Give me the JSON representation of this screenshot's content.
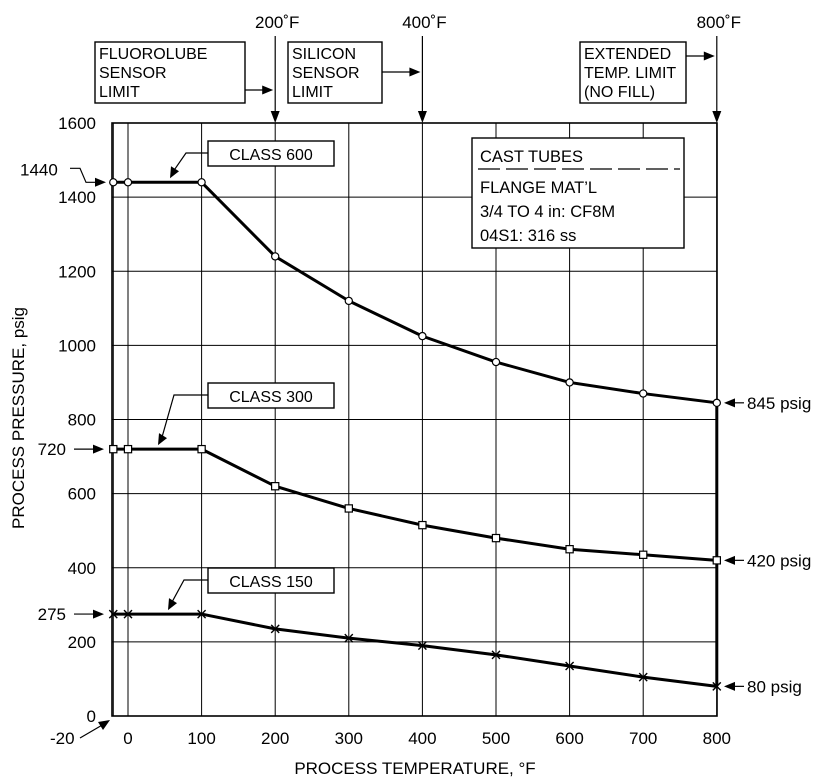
{
  "chart_data": {
    "type": "line",
    "xlabel": "PROCESS TEMPERATURE, °F",
    "ylabel": "PROCESS PRESSURE, psig",
    "xlim": [
      -20,
      800
    ],
    "ylim": [
      0,
      1600
    ],
    "x_ticks": [
      0,
      100,
      200,
      300,
      400,
      500,
      600,
      700,
      800
    ],
    "y_ticks": [
      0,
      200,
      400,
      600,
      800,
      1000,
      1200,
      1400,
      1600
    ],
    "x_origin_label": "-20",
    "grid": true,
    "series": [
      {
        "name": "CLASS 600",
        "marker": "circle",
        "x": [
          -20,
          0,
          100,
          200,
          300,
          400,
          500,
          600,
          700,
          800
        ],
        "y": [
          1440,
          1440,
          1440,
          1240,
          1120,
          1025,
          955,
          900,
          870,
          845
        ]
      },
      {
        "name": "CLASS 300",
        "marker": "square",
        "x": [
          -20,
          0,
          100,
          200,
          300,
          400,
          500,
          600,
          700,
          800
        ],
        "y": [
          720,
          720,
          720,
          620,
          560,
          515,
          480,
          450,
          435,
          420
        ]
      },
      {
        "name": "CLASS 150",
        "marker": "x",
        "x": [
          -20,
          0,
          100,
          200,
          300,
          400,
          500,
          600,
          700,
          800
        ],
        "y": [
          275,
          275,
          275,
          235,
          210,
          190,
          165,
          135,
          105,
          80
        ]
      }
    ],
    "value_labels": {
      "class600_left": "1440",
      "class300_left": "720",
      "class150_left": "275",
      "class600_right": "845 psig",
      "class300_right": "420 psig",
      "class150_right": "80 psig"
    },
    "top_temperatures": [
      {
        "value": 200,
        "label": "200˚F"
      },
      {
        "value": 400,
        "label": "400˚F"
      },
      {
        "value": 800,
        "label": "800˚F"
      }
    ],
    "limit_boxes": [
      {
        "lines": [
          "FLUOROLUBE",
          "SENSOR",
          "LIMIT"
        ],
        "at": 200
      },
      {
        "lines": [
          "SILICON",
          "SENSOR",
          "LIMIT"
        ],
        "at": 400
      },
      {
        "lines": [
          "EXTENDED",
          "TEMP. LIMIT",
          "(NO FILL)"
        ],
        "at": 800
      }
    ],
    "material_note": {
      "title": "CAST TUBES",
      "lines": [
        "FLANGE MAT’L",
        "3/4 TO 4 in: CF8M",
        "04S1: 316 ss"
      ]
    }
  }
}
